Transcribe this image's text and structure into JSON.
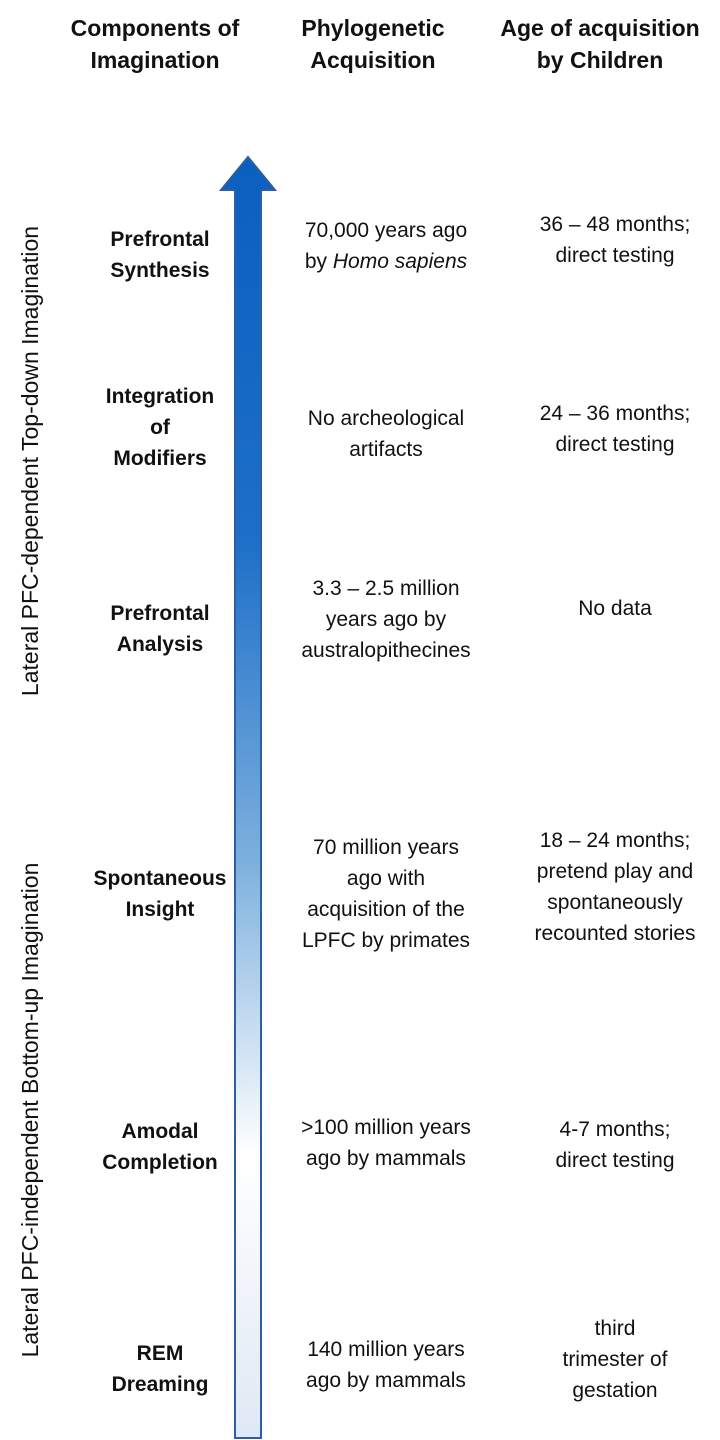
{
  "headers": {
    "components": [
      "Components of",
      "Imagination"
    ],
    "phylogenetic": [
      "Phylogenetic",
      "Acquisition"
    ],
    "age": [
      "Age of acquisition",
      "by Children"
    ]
  },
  "side_labels": {
    "top": "Lateral PFC-dependent Top-down Imagination",
    "bottom": "Lateral PFC-independent Bottom-up Imagination"
  },
  "arrow": {
    "color_top": "#0a5fc0",
    "color_bottom": "#ffffff",
    "color_base": "#dfe8f5",
    "outline": "#2c5f9e"
  },
  "rows": [
    {
      "component": [
        "Prefrontal",
        "Synthesis"
      ],
      "phylogenetic": [
        "70,000 years ago",
        "by Homo sapiens"
      ],
      "age": [
        "36 – 48 months;",
        "direct testing"
      ]
    },
    {
      "component": [
        "Integration",
        "of",
        "Modifiers"
      ],
      "phylogenetic": [
        "No archeological",
        "artifacts"
      ],
      "age": [
        "24 – 36 months;",
        "direct testing"
      ]
    },
    {
      "component": [
        "Prefrontal",
        "Analysis"
      ],
      "phylogenetic": [
        "3.3 – 2.5  million",
        "years ago by",
        "australopithecines"
      ],
      "age": [
        "No data"
      ]
    },
    {
      "component": [
        "Spontaneous",
        "Insight"
      ],
      "phylogenetic": [
        "70 million years",
        "ago with",
        "acquisition of the",
        "LPFC by primates"
      ],
      "age": [
        "18 – 24 months;",
        "pretend play and",
        "spontaneously",
        "recounted stories"
      ]
    },
    {
      "component": [
        "Amodal",
        "Completion"
      ],
      "phylogenetic": [
        ">100 million years",
        "ago by mammals"
      ],
      "age": [
        "4-7 months;",
        "direct testing"
      ]
    },
    {
      "component": [
        "REM",
        "Dreaming"
      ],
      "phylogenetic": [
        "140 million years",
        "ago by mammals"
      ],
      "age": [
        "third",
        "trimester of",
        "gestation"
      ]
    }
  ]
}
